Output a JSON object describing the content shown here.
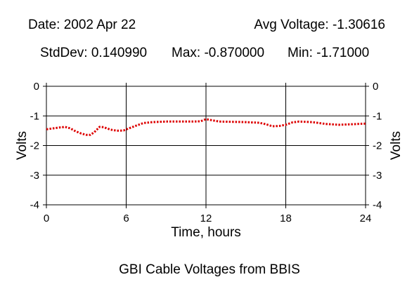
{
  "header": {
    "date": "Date: 2002 Apr 22",
    "avg": "Avg Voltage: -1.30616",
    "stddev": "StdDev: 0.140990",
    "max": "Max: -0.870000",
    "min": "Min: -1.71000"
  },
  "caption": "GBI Cable Voltages from BBIS",
  "colors": {
    "series": "#dd0000",
    "axis": "#000000"
  },
  "chart_data": {
    "type": "line",
    "xlabel": "Time, hours",
    "ylabel": "Volts",
    "xlim": [
      0,
      24
    ],
    "ylim": [
      -4,
      0
    ],
    "xticks": [
      0,
      6,
      12,
      18,
      24
    ],
    "yticks": [
      0,
      -1,
      -2,
      -3,
      -4
    ],
    "grid": true,
    "series": [
      {
        "line_style": "dotted",
        "points": [
          [
            0,
            -1.45
          ],
          [
            0.5,
            -1.42
          ],
          [
            1,
            -1.39
          ],
          [
            1.4,
            -1.37
          ],
          [
            1.8,
            -1.42
          ],
          [
            2.2,
            -1.52
          ],
          [
            2.6,
            -1.59
          ],
          [
            3.0,
            -1.64
          ],
          [
            3.3,
            -1.64
          ],
          [
            3.6,
            -1.55
          ],
          [
            3.8,
            -1.46
          ],
          [
            4.0,
            -1.37
          ],
          [
            4.3,
            -1.38
          ],
          [
            4.8,
            -1.46
          ],
          [
            5.3,
            -1.5
          ],
          [
            5.8,
            -1.49
          ],
          [
            6.2,
            -1.42
          ],
          [
            6.8,
            -1.32
          ],
          [
            7.3,
            -1.24
          ],
          [
            8,
            -1.21
          ],
          [
            9,
            -1.19
          ],
          [
            10,
            -1.19
          ],
          [
            11,
            -1.19
          ],
          [
            11.6,
            -1.18
          ],
          [
            12,
            -1.11
          ],
          [
            12.5,
            -1.15
          ],
          [
            13,
            -1.19
          ],
          [
            14,
            -1.2
          ],
          [
            15,
            -1.21
          ],
          [
            16,
            -1.23
          ],
          [
            16.5,
            -1.28
          ],
          [
            17,
            -1.35
          ],
          [
            17.5,
            -1.34
          ],
          [
            18,
            -1.3
          ],
          [
            18.5,
            -1.22
          ],
          [
            19,
            -1.19
          ],
          [
            20,
            -1.21
          ],
          [
            21,
            -1.27
          ],
          [
            22,
            -1.3
          ],
          [
            23,
            -1.28
          ],
          [
            24,
            -1.26
          ]
        ]
      }
    ]
  }
}
